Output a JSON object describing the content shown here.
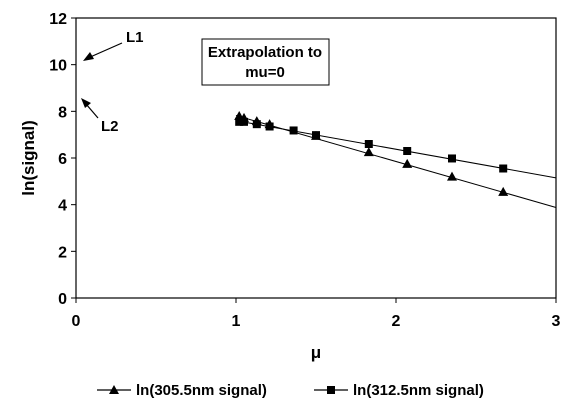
{
  "chart_data": {
    "type": "line",
    "xlabel": "μ",
    "ylabel": "ln(signal)",
    "xlim": [
      0,
      3
    ],
    "ylim": [
      0,
      12
    ],
    "x_ticks": [
      "0",
      "1",
      "2",
      "3"
    ],
    "y_ticks": [
      "0",
      "2",
      "4",
      "6",
      "8",
      "10",
      "12"
    ],
    "grid": false,
    "legend_position": "bottom",
    "annotation_box": {
      "line1": "Extrapolation to",
      "line2": "mu=0"
    },
    "arrow_labels": [
      {
        "text": "L1",
        "target_x": 0.0,
        "target_y": 9.9
      },
      {
        "text": "L2",
        "target_x": 0.0,
        "target_y": 8.5
      }
    ],
    "series": [
      {
        "name": "ln(305.5nm signal)",
        "marker": "triangle",
        "x": [
          1.02,
          1.05,
          1.13,
          1.21,
          1.5,
          1.83,
          2.07,
          2.35,
          2.67
        ],
        "y": [
          7.8,
          7.72,
          7.58,
          7.45,
          6.95,
          6.25,
          5.75,
          5.2,
          4.55
        ],
        "fit_line": {
          "x": [
            1.0,
            3.0
          ],
          "y": [
            7.82,
            3.88
          ]
        }
      },
      {
        "name": "ln(312.5nm signal)",
        "marker": "square",
        "x": [
          1.02,
          1.05,
          1.13,
          1.21,
          1.36,
          1.5,
          1.83,
          2.07,
          2.35,
          2.67
        ],
        "y": [
          7.55,
          7.55,
          7.45,
          7.35,
          7.18,
          6.98,
          6.6,
          6.3,
          5.98,
          5.55
        ],
        "fit_line": {
          "x": [
            1.0,
            3.0
          ],
          "y": [
            7.6,
            5.15
          ]
        }
      }
    ]
  }
}
